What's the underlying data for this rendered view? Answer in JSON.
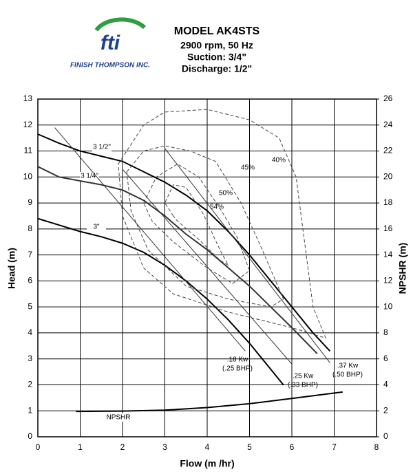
{
  "header": {
    "logo_mark": "fti",
    "company": "FINISH THOMPSON INC.",
    "title": "MODEL AK4STS",
    "lines": [
      "2900 rpm, 50 Hz",
      "Suction: 3/4\"",
      "Discharge: 1/2\""
    ]
  },
  "chart_data": {
    "type": "line",
    "xlabel": "Flow (m /hr)",
    "ylabel": "Head (m)",
    "y2label": "NPSHR (m)",
    "xlim": [
      0,
      8
    ],
    "xticks": [
      0,
      1,
      2,
      3,
      4,
      5,
      6,
      7,
      8
    ],
    "ylim": [
      0,
      13
    ],
    "yticks": [
      0,
      1,
      2,
      3,
      4,
      5,
      6,
      7,
      8,
      9,
      10,
      11,
      12,
      13
    ],
    "y2lim": [
      0,
      26
    ],
    "y2ticks": [
      0,
      2,
      4,
      6,
      8,
      10,
      12,
      14,
      16,
      18,
      20,
      22,
      24,
      26
    ],
    "grid": true,
    "series": [
      {
        "name": "3 1/2\"",
        "color": "#000000",
        "x": [
          0,
          0.5,
          1,
          1.5,
          2,
          2.5,
          3,
          3.5,
          4,
          4.5,
          5,
          5.5,
          6,
          6.5,
          6.9
        ],
        "values": [
          11.65,
          11.3,
          11.0,
          10.8,
          10.6,
          10.2,
          9.8,
          9.3,
          8.7,
          7.9,
          7.0,
          6.0,
          5.0,
          4.0,
          3.3
        ]
      },
      {
        "name": "3 1/4\"",
        "color": "#333333",
        "x": [
          0,
          0.5,
          1,
          1.5,
          2,
          2.5,
          3,
          3.5,
          4,
          4.5,
          5,
          5.5,
          6,
          6.6
        ],
        "values": [
          10.4,
          10.0,
          9.85,
          9.7,
          9.5,
          9.1,
          8.5,
          7.8,
          7.2,
          6.5,
          5.8,
          5.0,
          4.2,
          3.2
        ]
      },
      {
        "name": "3\"",
        "color": "#000000",
        "x": [
          0,
          0.5,
          1,
          1.5,
          2,
          2.5,
          3,
          3.5,
          4,
          4.5,
          5,
          5.5,
          5.8
        ],
        "values": [
          8.4,
          8.15,
          7.9,
          7.7,
          7.45,
          7.1,
          6.6,
          6.0,
          5.3,
          4.5,
          3.6,
          2.6,
          2.0
        ]
      },
      {
        "name": "NPSHR",
        "color": "#000000",
        "axis": "y2",
        "x": [
          0.9,
          2,
          3,
          4,
          5,
          6,
          7.2
        ],
        "values": [
          1.95,
          1.98,
          2.05,
          2.25,
          2.55,
          2.95,
          3.45
        ]
      },
      {
        "name": "54%",
        "color": "#444444",
        "dash": true,
        "x": [
          3.2,
          3.0,
          3.2,
          3.5,
          3.9,
          4.3,
          4.5,
          4.3,
          3.8,
          3.3,
          3.2
        ],
        "values": [
          8.5,
          9.0,
          9.7,
          9.6,
          8.6,
          7.2,
          6.6,
          6.8,
          7.6,
          8.3,
          8.5
        ]
      },
      {
        "name": "50%",
        "color": "#444444",
        "dash": true,
        "x": [
          2.5,
          2.8,
          3.3,
          3.8,
          4.3,
          4.7,
          5.0,
          4.6,
          4.0,
          3.2,
          2.7,
          2.5
        ],
        "values": [
          9.0,
          10.0,
          10.5,
          10.0,
          8.8,
          7.7,
          6.4,
          5.9,
          6.5,
          7.5,
          8.3,
          9.0
        ]
      },
      {
        "name": "45%",
        "color": "#444444",
        "dash": true,
        "x": [
          2.1,
          2.5,
          3.0,
          3.6,
          4.2,
          4.8,
          5.3,
          5.8,
          5.5,
          4.5,
          3.5,
          2.6,
          2.2,
          2.1
        ],
        "values": [
          10.2,
          11.0,
          11.2,
          11.0,
          10.6,
          9.0,
          7.2,
          5.3,
          5.0,
          5.3,
          5.8,
          7.2,
          8.7,
          10.2
        ]
      },
      {
        "name": "40%",
        "color": "#444444",
        "dash": true,
        "x": [
          1.9,
          2.5,
          3.0,
          4.0,
          5.0,
          5.7,
          6.1,
          6.3,
          6.5,
          6.8,
          6.0,
          4.5,
          3.2,
          2.5,
          2.0,
          1.9
        ],
        "values": [
          10.5,
          12.0,
          12.5,
          12.6,
          12.2,
          11.5,
          10.0,
          7.5,
          5.0,
          3.8,
          4.2,
          4.8,
          5.5,
          6.5,
          8.5,
          10.5
        ]
      },
      {
        "name": ".18 Kw",
        "note": "(.25 BHP)",
        "color": "#333333",
        "x": [
          0.4,
          4.9
        ],
        "values": [
          11.9,
          3.3
        ]
      },
      {
        "name": ".25 Kw",
        "note": "(.33 BHP)",
        "color": "#333333",
        "x": [
          2.0,
          6.0
        ],
        "values": [
          10.3,
          2.8
        ]
      },
      {
        "name": ".37 Kw",
        "note": "(.50 BHP)",
        "color": "#333333",
        "x": [
          3.0,
          6.9
        ],
        "values": [
          11.1,
          2.85
        ]
      }
    ]
  }
}
